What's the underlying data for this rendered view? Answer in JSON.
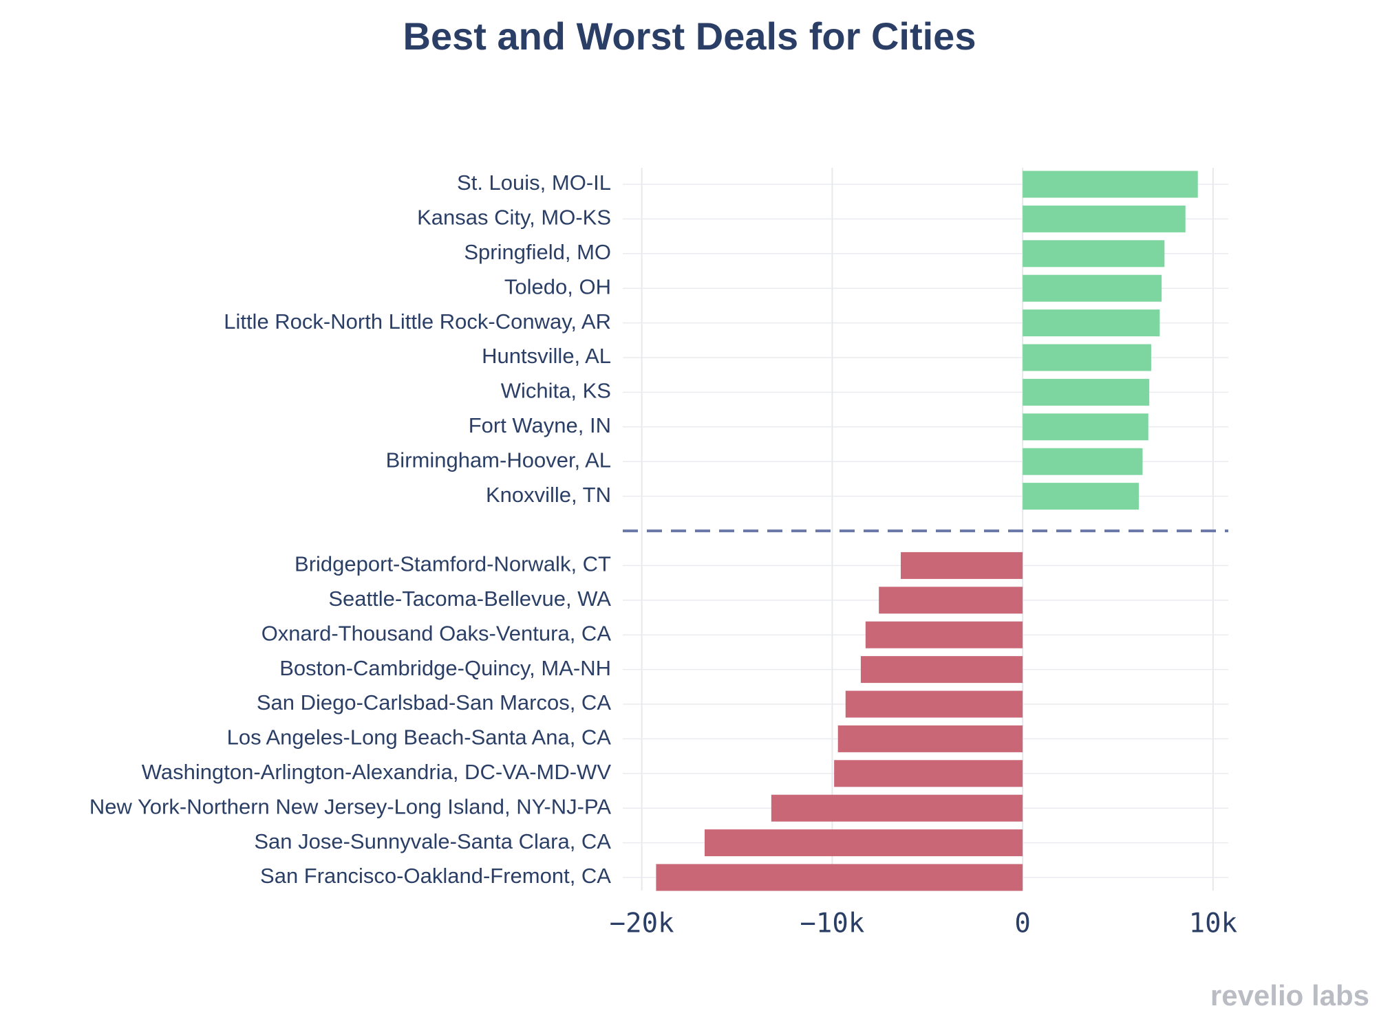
{
  "chart_data": {
    "type": "bar",
    "orientation": "horizontal",
    "title": "Best and Worst Deals for Cities",
    "xlabel": "",
    "ylabel": "",
    "xlim": [
      -21000,
      10800
    ],
    "x_ticks": [
      -20000,
      -10000,
      0,
      10000
    ],
    "x_tick_labels": [
      "−20k",
      "−10k",
      "0",
      "10k"
    ],
    "grid": true,
    "divider": "dashed line between best and worst groups",
    "series": [
      {
        "name": "Best deals",
        "color": "#7dd5a0",
        "categories": [
          "St. Louis, MO-IL",
          "Kansas City, MO-KS",
          "Springfield, MO",
          "Toledo, OH",
          "Little Rock-North Little Rock-Conway, AR",
          "Huntsville, AL",
          "Wichita, KS",
          "Fort Wayne, IN",
          "Birmingham-Hoover, AL",
          "Knoxville, TN"
        ],
        "values": [
          9200,
          8550,
          7450,
          7300,
          7200,
          6750,
          6650,
          6600,
          6300,
          6100
        ]
      },
      {
        "name": "Worst deals",
        "color": "#c96777",
        "categories": [
          "Bridgeport-Stamford-Norwalk, CT",
          "Seattle-Tacoma-Bellevue, WA",
          "Oxnard-Thousand Oaks-Ventura, CA",
          "Boston-Cambridge-Quincy, MA-NH",
          "San Diego-Carlsbad-San Marcos, CA",
          "Los Angeles-Long Beach-Santa Ana, CA",
          "Washington-Arlington-Alexandria, DC-VA-MD-WV",
          "New York-Northern New Jersey-Long Island, NY-NJ-PA",
          "San Jose-Sunnyvale-Santa Clara, CA",
          "San Francisco-Oakland-Fremont, CA"
        ],
        "values": [
          -6400,
          -7550,
          -8250,
          -8500,
          -9300,
          -9700,
          -9900,
          -13200,
          -16700,
          -19250
        ]
      }
    ]
  },
  "branding": {
    "logo_text": "revelio labs"
  }
}
